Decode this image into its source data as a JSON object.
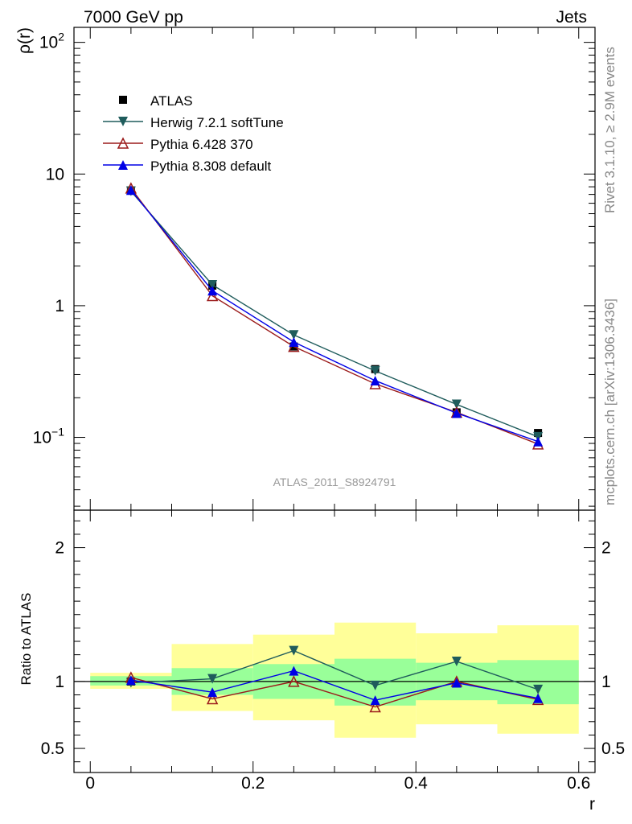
{
  "header": {
    "left_title": "7000 GeV pp",
    "right_title": "Jets"
  },
  "side_labels": {
    "rivet": "Rivet 3.1.10, ≥ 2.9M events",
    "mcplots": "mcplots.cern.ch [arXiv:1306.3436]"
  },
  "watermark": "ATLAS_2011_S8924791",
  "colors": {
    "atlas": "#000000",
    "herwig": "#1f5c5c",
    "pythia6": "#9b1b1b",
    "pythia8": "#0000e6",
    "band_inner": "#99ff99",
    "band_outer": "#ffff99"
  },
  "chart_data": [
    {
      "type": "line",
      "title": "",
      "xlabel": "",
      "ylabel": "ρ(r)",
      "yscale": "log",
      "xlim": [
        -0.02,
        0.62
      ],
      "ylim": [
        0.028,
        130
      ],
      "yticks": [
        {
          "value": 100,
          "label": "10",
          "exp": "2"
        },
        {
          "value": 10,
          "label": "10",
          "exp": ""
        },
        {
          "value": 1,
          "label": "1",
          "exp": ""
        },
        {
          "value": 0.1,
          "label": "10",
          "exp": "−1"
        }
      ],
      "x": [
        0.05,
        0.15,
        0.25,
        0.35,
        0.45,
        0.55
      ],
      "legend": {
        "position": "top-left"
      },
      "series": [
        {
          "name": "ATLAS",
          "key": "atlas",
          "marker": "square",
          "values": [
            7.5,
            1.42,
            0.49,
            0.33,
            0.155,
            0.108
          ]
        },
        {
          "name": "Herwig 7.2.1 softTune",
          "key": "herwig",
          "marker": "triangle-down",
          "values": [
            7.4,
            1.44,
            0.6,
            0.32,
            0.178,
            0.101
          ]
        },
        {
          "name": "Pythia 6.428 370",
          "key": "pythia6",
          "marker": "triangle-up-open",
          "values": [
            7.8,
            1.19,
            0.49,
            0.255,
            0.155,
            0.089
          ]
        },
        {
          "name": "Pythia 8.308 default",
          "key": "pythia8",
          "marker": "triangle-up",
          "values": [
            7.55,
            1.3,
            0.53,
            0.27,
            0.153,
            0.093
          ]
        }
      ]
    },
    {
      "type": "line",
      "title": "",
      "xlabel": "r",
      "ylabel": "Ratio to ATLAS",
      "xlim": [
        -0.02,
        0.62
      ],
      "ylim": [
        0.32,
        2.28
      ],
      "xticks": [
        0,
        0.2,
        0.4,
        0.6
      ],
      "xtick_labels": [
        "0",
        "0.2",
        "0.4",
        "0.6"
      ],
      "yticks": [
        0.5,
        1,
        2
      ],
      "ytick_labels": [
        "0.5",
        "1",
        "2"
      ],
      "bins": [
        [
          0,
          0.1
        ],
        [
          0.1,
          0.2
        ],
        [
          0.2,
          0.3
        ],
        [
          0.3,
          0.4
        ],
        [
          0.4,
          0.5
        ],
        [
          0.5,
          0.6
        ]
      ],
      "band_inner": [
        [
          0.97,
          1.04
        ],
        [
          0.9,
          1.1
        ],
        [
          0.87,
          1.13
        ],
        [
          0.82,
          1.17
        ],
        [
          0.86,
          1.14
        ],
        [
          0.83,
          1.16
        ]
      ],
      "band_outer": [
        [
          0.945,
          1.065
        ],
        [
          0.78,
          1.28
        ],
        [
          0.71,
          1.35
        ],
        [
          0.58,
          1.44
        ],
        [
          0.68,
          1.36
        ],
        [
          0.61,
          1.42
        ]
      ],
      "x": [
        0.05,
        0.15,
        0.25,
        0.35,
        0.45,
        0.55
      ],
      "series": [
        {
          "name": "Herwig 7.2.1 softTune",
          "key": "herwig",
          "marker": "triangle-down",
          "values": [
            0.99,
            1.02,
            1.23,
            0.97,
            1.15,
            0.94
          ]
        },
        {
          "name": "Pythia 6.428 370",
          "key": "pythia6",
          "marker": "triangle-up-open",
          "values": [
            1.03,
            0.87,
            1.0,
            0.81,
            1.0,
            0.865
          ]
        },
        {
          "name": "Pythia 8.308 default",
          "key": "pythia8",
          "marker": "triangle-up",
          "values": [
            1.01,
            0.92,
            1.08,
            0.86,
            0.99,
            0.875
          ]
        }
      ]
    }
  ]
}
